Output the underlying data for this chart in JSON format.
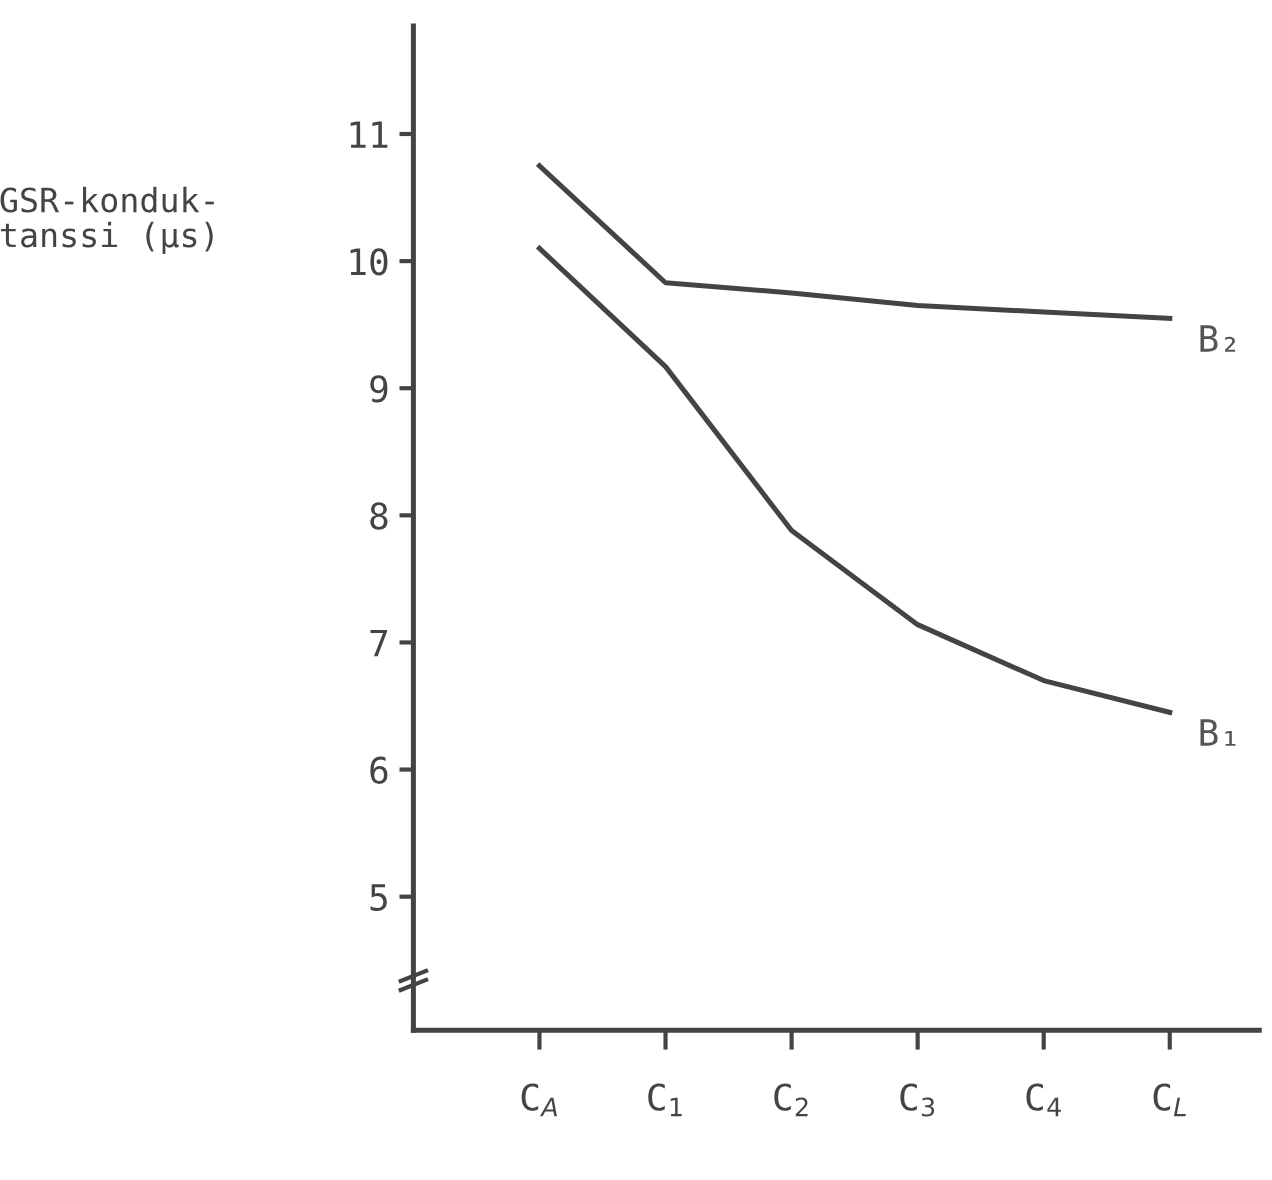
{
  "chart_data": {
    "type": "line",
    "ylabel": "GSR-konduk-\ntanssi (µs)",
    "categories": [
      "C$_{A}$",
      "C$_{1}$",
      "C$_{2}$",
      "C$_{3}$",
      "C$_{4}$",
      "C$_{L}$"
    ],
    "series": [
      {
        "name": "B₂",
        "color": "#444444",
        "values": [
          10.75,
          9.83,
          9.75,
          9.65,
          9.6,
          9.55
        ]
      },
      {
        "name": "B₁",
        "color": "#444444",
        "values": [
          10.1,
          9.17,
          7.88,
          7.14,
          6.7,
          6.45
        ]
      }
    ],
    "ylim": [
      3.95,
      11.85
    ],
    "yticks": [
      5,
      6,
      7,
      8,
      9,
      10,
      11
    ],
    "grid": false,
    "legend": false,
    "marker": "none",
    "line_style": "solid"
  }
}
